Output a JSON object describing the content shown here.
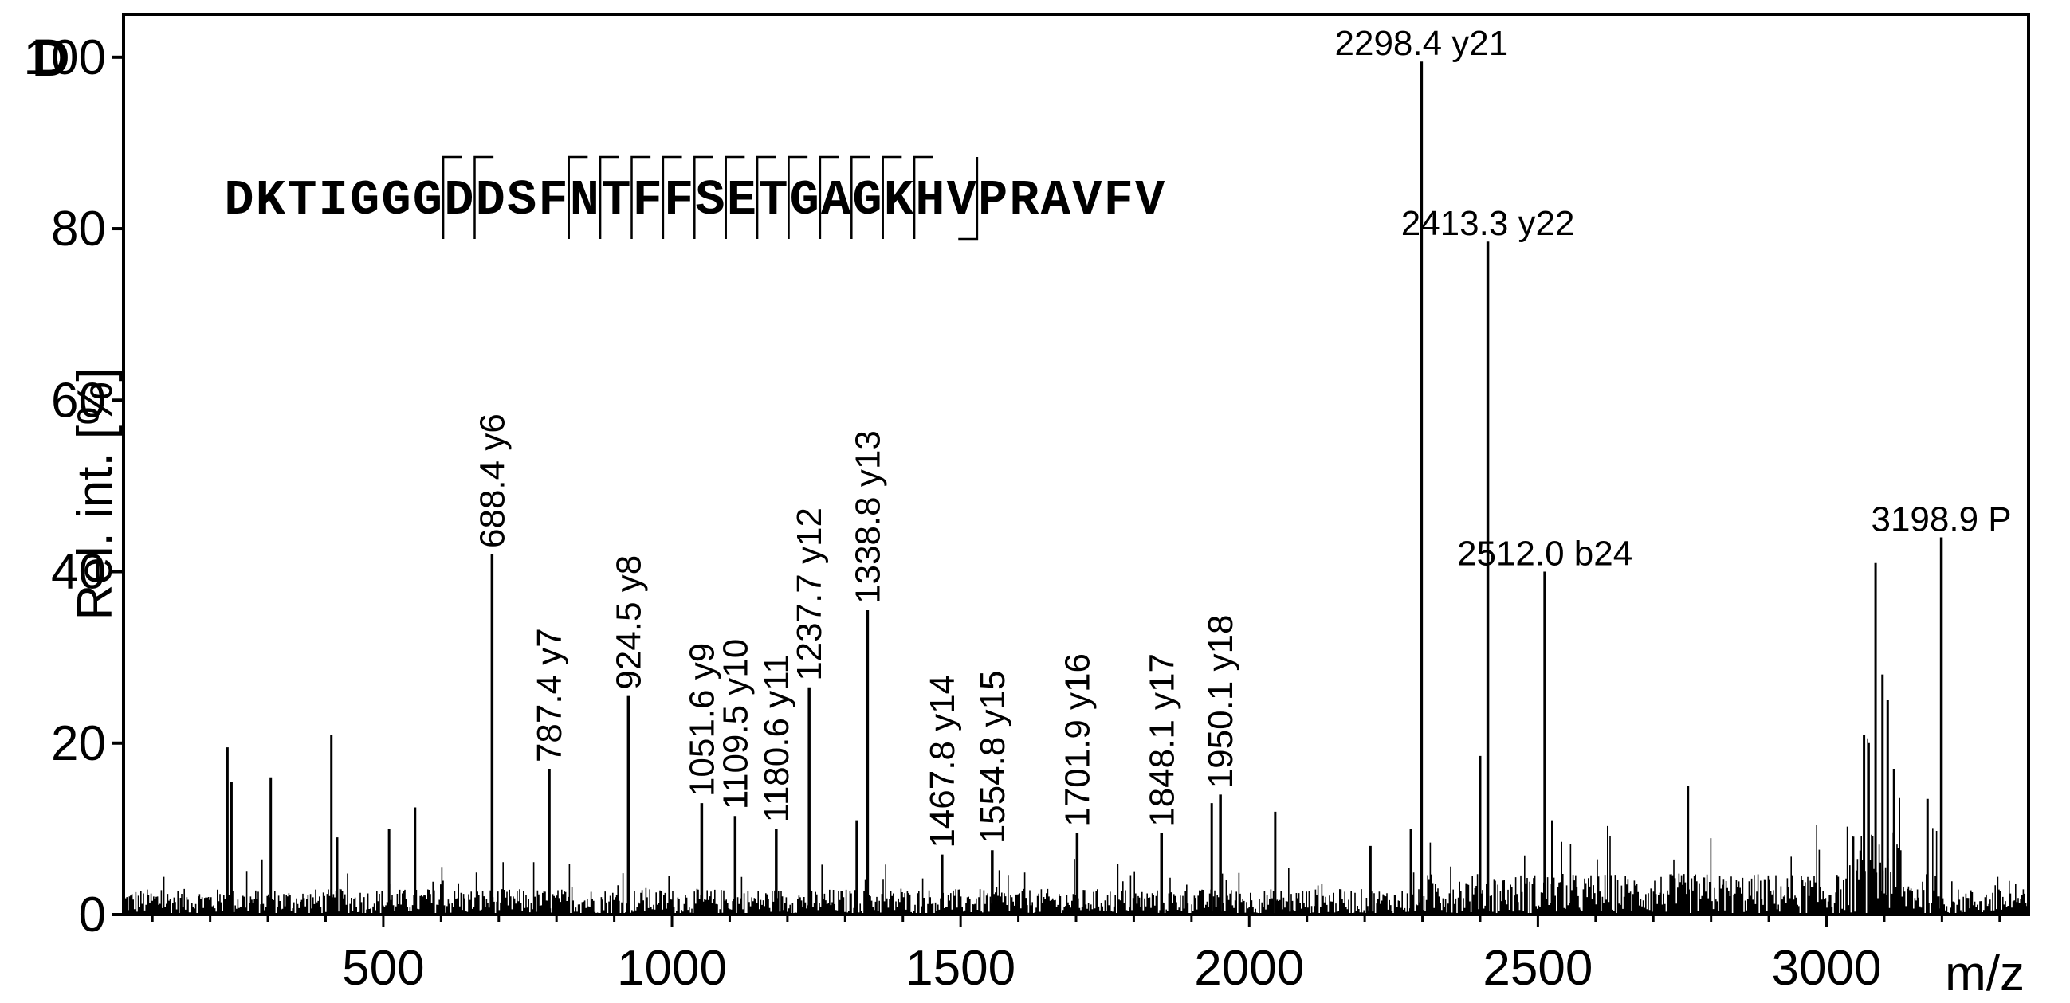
{
  "panel_label": "D",
  "chart_data": {
    "type": "line",
    "xlabel": "m/z",
    "ylabel": "Rel. int. [%]",
    "xlim": [
      50,
      3350
    ],
    "ylim": [
      0,
      105
    ],
    "x_ticks": [
      500,
      1000,
      1500,
      2000,
      2500,
      3000
    ],
    "y_ticks": [
      0,
      20,
      40,
      60,
      80,
      100
    ],
    "grid": false,
    "noise_level": 3,
    "peaks": [
      {
        "mz": 688.4,
        "intensity": 42,
        "label": "688.4 y6",
        "orientation": "vertical"
      },
      {
        "mz": 787.4,
        "intensity": 17,
        "label": "787.4 y7",
        "orientation": "vertical"
      },
      {
        "mz": 924.5,
        "intensity": 25.5,
        "label": "924.5 y8",
        "orientation": "vertical"
      },
      {
        "mz": 1051.6,
        "intensity": 13,
        "label": "1051.6 y9",
        "orientation": "vertical"
      },
      {
        "mz": 1109.5,
        "intensity": 11.5,
        "label": "1109.5 y10",
        "orientation": "vertical"
      },
      {
        "mz": 1180.6,
        "intensity": 10,
        "label": "1180.6 y11",
        "orientation": "vertical"
      },
      {
        "mz": 1237.7,
        "intensity": 26.5,
        "label": "1237.7 y12",
        "orientation": "vertical"
      },
      {
        "mz": 1338.8,
        "intensity": 35.5,
        "label": "1338.8 y13",
        "orientation": "vertical"
      },
      {
        "mz": 1467.8,
        "intensity": 7,
        "label": "1467.8 y14",
        "orientation": "vertical"
      },
      {
        "mz": 1554.8,
        "intensity": 7.5,
        "label": "1554.8 y15",
        "orientation": "vertical"
      },
      {
        "mz": 1701.9,
        "intensity": 9.5,
        "label": "1701.9 y16",
        "orientation": "vertical"
      },
      {
        "mz": 1848.1,
        "intensity": 9.5,
        "label": "1848.1 y17",
        "orientation": "vertical"
      },
      {
        "mz": 1950.1,
        "intensity": 14,
        "label": "1950.1 y18",
        "orientation": "vertical"
      },
      {
        "mz": 2298.4,
        "intensity": 99.5,
        "label": "2298.4 y21",
        "orientation": "horizontal"
      },
      {
        "mz": 2413.3,
        "intensity": 78.5,
        "label": "2413.3 y22",
        "orientation": "horizontal"
      },
      {
        "mz": 2512.0,
        "intensity": 40,
        "label": "2512.0 b24",
        "orientation": "horizontal"
      },
      {
        "mz": 3198.9,
        "intensity": 44,
        "label": "3198.9 P",
        "orientation": "horizontal"
      }
    ],
    "minor_peaks": [
      {
        "mz": 230,
        "intensity": 19.5
      },
      {
        "mz": 237,
        "intensity": 15.5
      },
      {
        "mz": 305,
        "intensity": 16
      },
      {
        "mz": 410,
        "intensity": 21
      },
      {
        "mz": 420,
        "intensity": 9
      },
      {
        "mz": 555,
        "intensity": 12.5
      },
      {
        "mz": 510,
        "intensity": 10
      },
      {
        "mz": 1320,
        "intensity": 11
      },
      {
        "mz": 1935,
        "intensity": 13
      },
      {
        "mz": 2045,
        "intensity": 12
      },
      {
        "mz": 2400,
        "intensity": 18.5
      },
      {
        "mz": 2525,
        "intensity": 11
      },
      {
        "mz": 2760,
        "intensity": 15
      },
      {
        "mz": 3065,
        "intensity": 21
      },
      {
        "mz": 3073,
        "intensity": 20
      },
      {
        "mz": 3085,
        "intensity": 41
      },
      {
        "mz": 3097,
        "intensity": 28
      },
      {
        "mz": 3106,
        "intensity": 25
      },
      {
        "mz": 3117,
        "intensity": 17
      },
      {
        "mz": 3175,
        "intensity": 13.5
      },
      {
        "mz": 2280,
        "intensity": 10
      },
      {
        "mz": 2210,
        "intensity": 8
      }
    ],
    "sequence": {
      "letters": [
        "D",
        "K",
        "T",
        "I",
        "G",
        "G",
        "G",
        "D",
        "D",
        "S",
        "F",
        "N",
        "T",
        "F",
        "F",
        "S",
        "E",
        "T",
        "G",
        "A",
        "G",
        "K",
        "H",
        "V",
        "P",
        "R",
        "A",
        "V",
        "F",
        "V"
      ],
      "highlight_index": 1,
      "highlight_color": "#f7941d",
      "y_ion_marks": [
        7,
        8,
        11,
        12,
        13,
        14,
        15,
        16,
        17,
        18,
        19,
        20,
        21,
        22
      ],
      "b_ion_marks": [
        23
      ]
    }
  }
}
